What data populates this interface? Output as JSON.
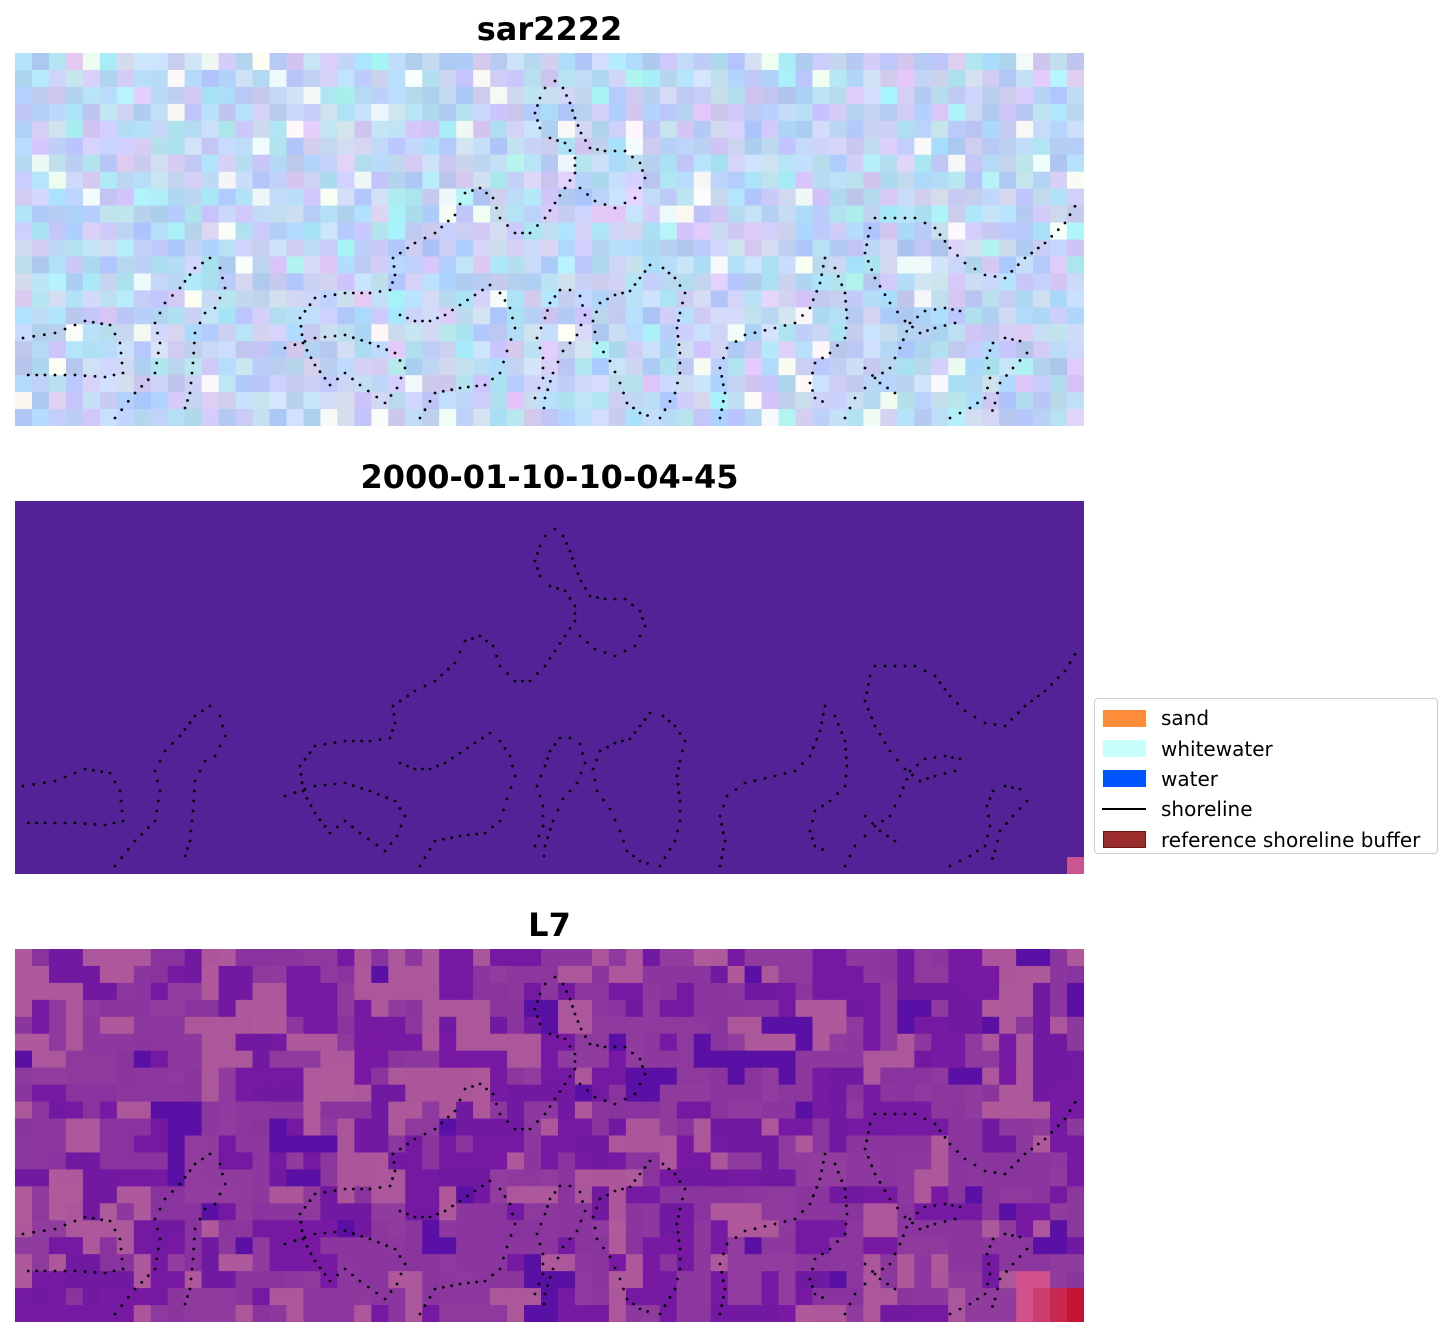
{
  "figure": {
    "panels": [
      {
        "title": "sar2222",
        "style": "sar"
      },
      {
        "title": "2000-01-10-10-04-45",
        "style": "classified"
      },
      {
        "title": "L7",
        "style": "index"
      }
    ]
  },
  "legend": {
    "items": [
      {
        "label": "sand",
        "kind": "patch",
        "color": "#ff8c3a",
        "edge": "#ff8c3a"
      },
      {
        "label": "whitewater",
        "kind": "patch",
        "color": "#c9fffb",
        "edge": "#c9fffb"
      },
      {
        "label": "water",
        "kind": "patch",
        "color": "#0055ff",
        "edge": "#0055ff"
      },
      {
        "label": "shoreline",
        "kind": "line",
        "color": "#000000"
      },
      {
        "label": "reference shoreline buffer",
        "kind": "patch",
        "color": "#9b2d2d",
        "edge": "#6e1515"
      }
    ]
  },
  "colors": {
    "classified_background": "#522296",
    "classified_corner": "#c9568f",
    "shoreline_dots": "#000000"
  }
}
